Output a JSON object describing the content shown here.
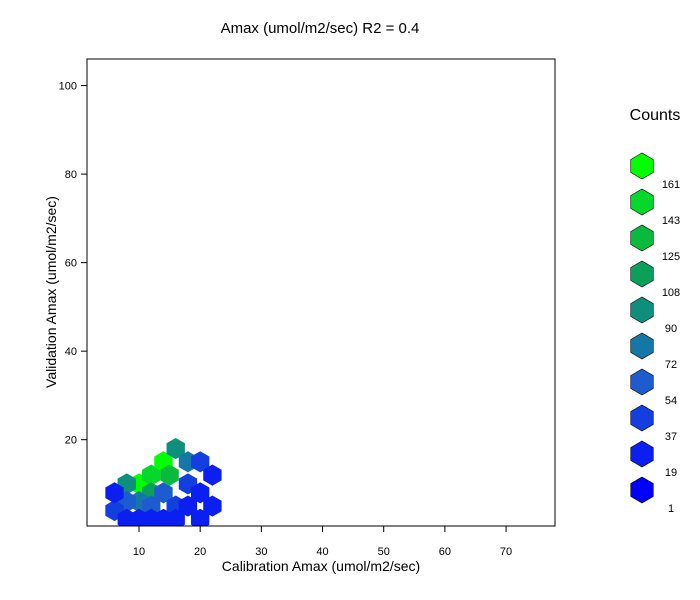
{
  "chart_data": {
    "type": "hexbin",
    "title": "Amax (umol/m2/sec)  R2  =  0.4",
    "xlabel": "Calibration  Amax (umol/m2/sec)",
    "ylabel": "Validation  Amax (umol/m2/sec)",
    "xlim": [
      1.5,
      78
    ],
    "ylim": [
      0.5,
      106
    ],
    "x_ticks": [
      10,
      20,
      30,
      40,
      50,
      60,
      70
    ],
    "y_ticks": [
      20,
      40,
      60,
      80,
      100
    ],
    "grid": false,
    "legend": {
      "title": "Counts",
      "placement": "right",
      "counts": [
        1,
        19,
        37,
        54,
        72,
        90,
        108,
        125,
        143,
        161
      ],
      "colors": [
        "#0000ff",
        "#0a1ff0",
        "#143fe0",
        "#1d5ccf",
        "#1577a8",
        "#0e8f7c",
        "#0aa05a",
        "#08bb3c",
        "#05d82a",
        "#00ff00"
      ]
    },
    "cells": [
      {
        "x": 10,
        "y": 10,
        "count": 161
      },
      {
        "x": 12,
        "y": 12,
        "count": 143
      },
      {
        "x": 14,
        "y": 15,
        "count": 161
      },
      {
        "x": 15,
        "y": 12,
        "count": 125
      },
      {
        "x": 12,
        "y": 8,
        "count": 108
      },
      {
        "x": 8,
        "y": 10,
        "count": 90
      },
      {
        "x": 16,
        "y": 18,
        "count": 90
      },
      {
        "x": 18,
        "y": 15,
        "count": 72
      },
      {
        "x": 10,
        "y": 6,
        "count": 72
      },
      {
        "x": 14,
        "y": 8,
        "count": 54
      },
      {
        "x": 8,
        "y": 6,
        "count": 54
      },
      {
        "x": 12,
        "y": 5,
        "count": 54
      },
      {
        "x": 18,
        "y": 10,
        "count": 37
      },
      {
        "x": 16,
        "y": 5,
        "count": 37
      },
      {
        "x": 20,
        "y": 15,
        "count": 37
      },
      {
        "x": 6,
        "y": 4,
        "count": 37
      },
      {
        "x": 20,
        "y": 8,
        "count": 19
      },
      {
        "x": 10,
        "y": 2,
        "count": 19
      },
      {
        "x": 14,
        "y": 2,
        "count": 19
      },
      {
        "x": 6,
        "y": 8,
        "count": 19
      },
      {
        "x": 18,
        "y": 5,
        "count": 19
      },
      {
        "x": 22,
        "y": 12,
        "count": 19
      },
      {
        "x": 22,
        "y": 5,
        "count": 19
      },
      {
        "x": 8,
        "y": 2,
        "count": 19
      },
      {
        "x": 16,
        "y": 2,
        "count": 19
      },
      {
        "x": 20,
        "y": 2,
        "count": 19
      },
      {
        "x": 12,
        "y": 2,
        "count": 19
      }
    ]
  }
}
